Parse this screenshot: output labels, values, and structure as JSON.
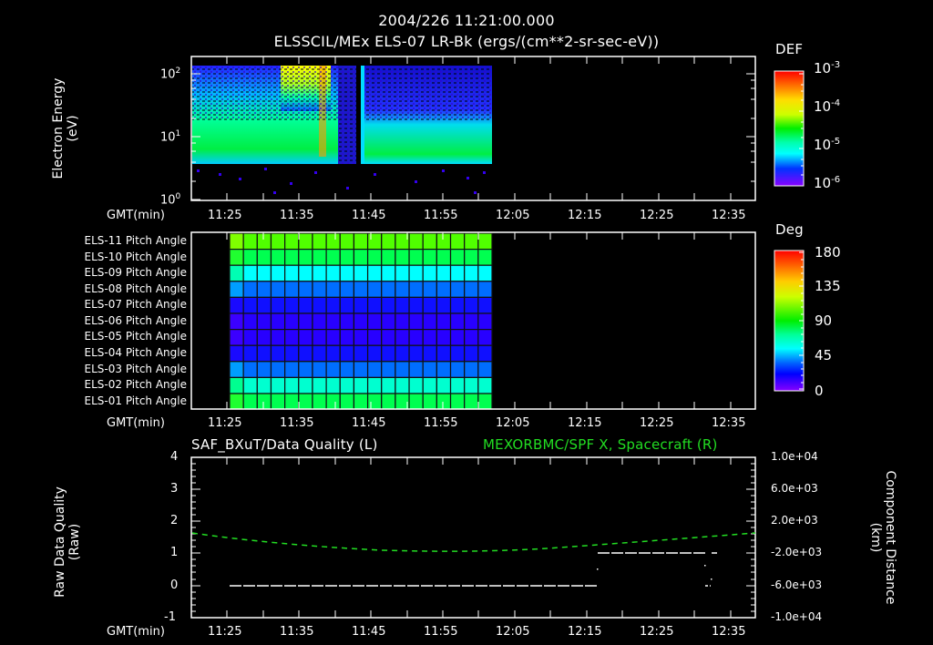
{
  "header": {
    "time_title": "2004/226 11:21:00.000",
    "dataset_title": "ELSSCIL/MEx ELS-07 LR-Bk  (ergs/(cm**2-sr-sec-eV))"
  },
  "panel_energy": {
    "ylabel_line1": "Electron Energy",
    "ylabel_line2": "(eV)",
    "yticks": [
      "10",
      "10",
      "10"
    ],
    "yexps": [
      "2",
      "1",
      "0"
    ],
    "xlabel": "GMT(min)",
    "xticks": [
      "11:25",
      "11:35",
      "11:45",
      "11:55",
      "12:05",
      "12:15",
      "12:25",
      "12:35"
    ],
    "colorbar": {
      "title": "DEF",
      "ticks": [
        "10",
        "10",
        "10",
        "10"
      ],
      "exps": [
        "-3",
        "-4",
        "-5",
        "-6"
      ]
    }
  },
  "panel_pitch": {
    "rows": [
      "ELS-11 Pitch Angle",
      "ELS-10 Pitch Angle",
      "ELS-09 Pitch Angle",
      "ELS-08 Pitch Angle",
      "ELS-07 Pitch Angle",
      "ELS-06 Pitch Angle",
      "ELS-05 Pitch Angle",
      "ELS-04 Pitch Angle",
      "ELS-03 Pitch Angle",
      "ELS-02 Pitch Angle",
      "ELS-01 Pitch Angle"
    ],
    "xlabel": "GMT(min)",
    "xticks": [
      "11:25",
      "11:35",
      "11:45",
      "11:55",
      "12:05",
      "12:15",
      "12:25",
      "12:35"
    ],
    "colorbar": {
      "title": "Deg",
      "ticks": [
        "180",
        "135",
        "90",
        "45",
        "0"
      ]
    }
  },
  "panel_quality": {
    "left_title": "SAF_BXuT/Data Quality (L)",
    "right_title": "MEXORBMC/SPF X, Spacecraft (R)",
    "ylabel_left_line1": "Raw Data Quality",
    "ylabel_left_line2": "(Raw)",
    "ylabel_right_line1": "Component Distance",
    "ylabel_right_line2": "(km)",
    "yticks_left": [
      "4",
      "3",
      "2",
      "1",
      "0",
      "-1"
    ],
    "yticks_right": [
      "1.0e+04",
      "6.0e+03",
      "2.0e+03",
      "-2.0e+03",
      "-6.0e+03",
      "-1.0e+04"
    ],
    "xlabel": "GMT(min)",
    "xticks": [
      "11:25",
      "11:35",
      "11:45",
      "11:55",
      "12:05",
      "12:15",
      "12:25",
      "12:35"
    ]
  },
  "colors": {
    "background": "#000000",
    "axis": "#ffffff",
    "spacecraft_line": "#22dd22",
    "quality_line": "#ffffff"
  },
  "chart_data": [
    {
      "type": "heatmap",
      "title": "ELSSCIL/MEx ELS-07 LR-Bk (ergs/(cm**2-sr-sec-eV))",
      "subtitle": "2004/226 11:21:00.000",
      "xlabel": "GMT(min)",
      "ylabel": "Electron Energy (eV)",
      "yscale": "log",
      "ylim": [
        1,
        150
      ],
      "x_ticks": [
        "11:25",
        "11:35",
        "11:45",
        "11:55",
        "12:05",
        "12:15",
        "12:25",
        "12:35"
      ],
      "x_range": [
        "11:21",
        "12:39"
      ],
      "data_extent": [
        "11:21",
        "12:03"
      ],
      "colorbar": {
        "label": "DEF",
        "scale": "log",
        "range": [
          1e-06,
          0.001
        ]
      },
      "notes": "Data present 11:21-12:03; data gap near 11:42-11:44; enhanced flux (yellow/orange) near 11:34-11:39 at 30-150 eV; low energy cutoff ~4 eV"
    },
    {
      "type": "heatmap",
      "title": "Pitch Angle",
      "xlabel": "GMT(min)",
      "categories": [
        "ELS-11",
        "ELS-10",
        "ELS-09",
        "ELS-08",
        "ELS-07",
        "ELS-06",
        "ELS-05",
        "ELS-04",
        "ELS-03",
        "ELS-02",
        "ELS-01"
      ],
      "x_ticks": [
        "11:25",
        "11:35",
        "11:45",
        "11:55",
        "12:05",
        "12:15",
        "12:25",
        "12:35"
      ],
      "data_extent": [
        "11:26",
        "12:03"
      ],
      "values_deg_approx": [
        120,
        105,
        80,
        60,
        30,
        20,
        20,
        30,
        60,
        85,
        105
      ],
      "colorbar": {
        "label": "Deg",
        "range": [
          0,
          180
        ],
        "ticks": [
          0,
          45,
          90,
          135,
          180
        ]
      }
    },
    {
      "type": "line",
      "title": "SAF_BXuT/Data Quality (L) ; MEXORBMC/SPF X, Spacecraft (R)",
      "xlabel": "GMT(min)",
      "ylabel": "Raw Data Quality (Raw)",
      "ylabel_right": "Component Distance (km)",
      "ylim": [
        -1,
        4
      ],
      "ylim_right": [
        -10000,
        10000
      ],
      "x_ticks": [
        "11:25",
        "11:35",
        "11:45",
        "11:55",
        "12:05",
        "12:15",
        "12:25",
        "12:35"
      ],
      "series": [
        {
          "name": "Data Quality (L)",
          "axis": "left",
          "x": [
            "11:26",
            "12:17",
            "12:17",
            "12:32"
          ],
          "values": [
            0,
            0,
            1,
            1
          ]
        },
        {
          "name": "SPF X Spacecraft (R)",
          "axis": "right",
          "x": [
            "11:21",
            "11:30",
            "11:40",
            "11:50",
            "12:00",
            "12:10",
            "12:20",
            "12:30",
            "12:39"
          ],
          "values": [
            300,
            -800,
            -1600,
            -2000,
            -2000,
            -1400,
            -700,
            -100,
            300
          ]
        }
      ]
    }
  ]
}
